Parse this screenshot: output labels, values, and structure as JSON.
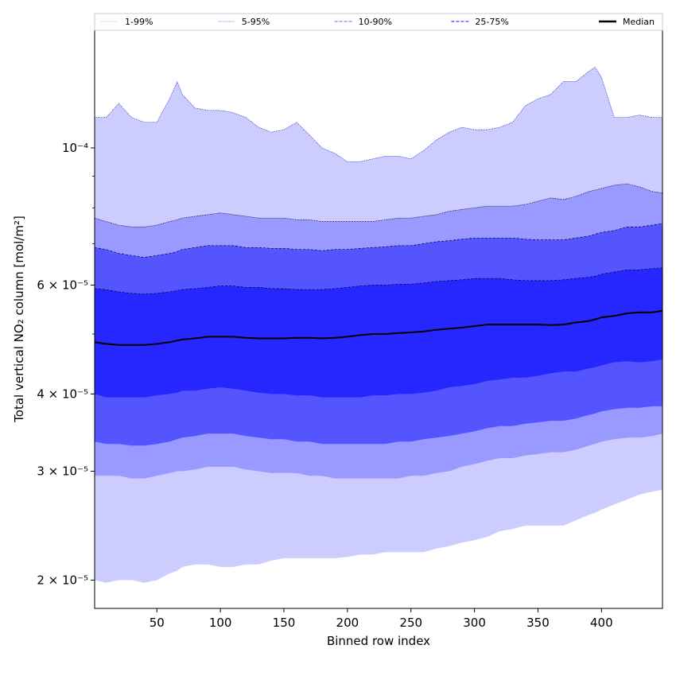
{
  "chart_data": {
    "type": "area",
    "xlabel": "Binned row index",
    "ylabel": "Total vertical NO₂ column [mol/m²]",
    "xlim": [
      1,
      448
    ],
    "ylim": [
      1.8e-05,
      0.000155
    ],
    "yscale": "log",
    "x_ticks": [
      50,
      100,
      150,
      200,
      250,
      300,
      350,
      400
    ],
    "y_ticks": [
      {
        "value": 2e-05,
        "label": "2 × 10⁻⁵"
      },
      {
        "value": 3e-05,
        "label": "3 × 10⁻⁵"
      },
      {
        "value": 4e-05,
        "label": "4 × 10⁻⁵"
      },
      {
        "value": 6e-05,
        "label": "6 × 10⁻⁵"
      },
      {
        "value": 0.0001,
        "label": "10⁻⁴"
      }
    ],
    "legend_position": "top",
    "legend": [
      {
        "label": "1-99%",
        "color": "#ccccff",
        "style": "dotted"
      },
      {
        "label": "5-95%",
        "color": "#9999ff",
        "style": "dotted"
      },
      {
        "label": "10-90%",
        "color": "#8080ff",
        "style": "dashed"
      },
      {
        "label": "25-75%",
        "color": "#4040ff",
        "style": "dashed"
      },
      {
        "label": "Median",
        "color": "#000000",
        "style": "solid"
      }
    ],
    "x": [
      1,
      10,
      20,
      30,
      40,
      50,
      60,
      66,
      70,
      80,
      90,
      100,
      110,
      120,
      130,
      140,
      150,
      160,
      170,
      180,
      190,
      200,
      210,
      220,
      230,
      240,
      250,
      260,
      270,
      280,
      290,
      300,
      310,
      320,
      330,
      340,
      350,
      360,
      370,
      380,
      390,
      395,
      400,
      410,
      420,
      430,
      440,
      448
    ],
    "series": [
      {
        "name": "1-99%",
        "color": "#ccccff",
        "lower": [
          2e-05,
          1.98e-05,
          2e-05,
          2e-05,
          1.98e-05,
          2e-05,
          2.05e-05,
          2.07e-05,
          2.1e-05,
          2.12e-05,
          2.12e-05,
          2.1e-05,
          2.1e-05,
          2.12e-05,
          2.12e-05,
          2.15e-05,
          2.17e-05,
          2.17e-05,
          2.17e-05,
          2.17e-05,
          2.17e-05,
          2.18e-05,
          2.2e-05,
          2.2e-05,
          2.22e-05,
          2.22e-05,
          2.22e-05,
          2.22e-05,
          2.25e-05,
          2.27e-05,
          2.3e-05,
          2.32e-05,
          2.35e-05,
          2.4e-05,
          2.42e-05,
          2.45e-05,
          2.45e-05,
          2.45e-05,
          2.45e-05,
          2.5e-05,
          2.55e-05,
          2.57e-05,
          2.6e-05,
          2.65e-05,
          2.7e-05,
          2.75e-05,
          2.78e-05,
          2.8e-05
        ],
        "upper": [
          0.000112,
          0.000112,
          0.000118,
          0.000112,
          0.00011,
          0.00011,
          0.00012,
          0.000128,
          0.000122,
          0.000116,
          0.000115,
          0.000115,
          0.000114,
          0.000112,
          0.000108,
          0.000106,
          0.000107,
          0.00011,
          0.000105,
          0.0001,
          9.8e-05,
          9.5e-05,
          9.5e-05,
          9.6e-05,
          9.7e-05,
          9.7e-05,
          9.6e-05,
          9.9e-05,
          0.000103,
          0.000106,
          0.000108,
          0.000107,
          0.000107,
          0.000108,
          0.00011,
          0.000117,
          0.00012,
          0.000122,
          0.000128,
          0.000128,
          0.000133,
          0.000135,
          0.00013,
          0.000112,
          0.000112,
          0.000113,
          0.000112,
          0.000112
        ]
      },
      {
        "name": "5-95%",
        "color": "#9999ff",
        "lower": [
          2.95e-05,
          2.95e-05,
          2.95e-05,
          2.92e-05,
          2.92e-05,
          2.95e-05,
          2.98e-05,
          3e-05,
          3e-05,
          3.02e-05,
          3.05e-05,
          3.05e-05,
          3.05e-05,
          3.02e-05,
          3e-05,
          2.98e-05,
          2.98e-05,
          2.98e-05,
          2.95e-05,
          2.95e-05,
          2.92e-05,
          2.92e-05,
          2.92e-05,
          2.92e-05,
          2.92e-05,
          2.92e-05,
          2.95e-05,
          2.95e-05,
          2.98e-05,
          3e-05,
          3.05e-05,
          3.08e-05,
          3.12e-05,
          3.15e-05,
          3.15e-05,
          3.18e-05,
          3.2e-05,
          3.22e-05,
          3.22e-05,
          3.25e-05,
          3.3e-05,
          3.32e-05,
          3.35e-05,
          3.38e-05,
          3.4e-05,
          3.4e-05,
          3.42e-05,
          3.45e-05
        ],
        "upper": [
          7.7e-05,
          7.6e-05,
          7.5e-05,
          7.45e-05,
          7.45e-05,
          7.5e-05,
          7.6e-05,
          7.65e-05,
          7.7e-05,
          7.75e-05,
          7.8e-05,
          7.85e-05,
          7.8e-05,
          7.75e-05,
          7.7e-05,
          7.7e-05,
          7.7e-05,
          7.65e-05,
          7.65e-05,
          7.6e-05,
          7.6e-05,
          7.6e-05,
          7.6e-05,
          7.6e-05,
          7.65e-05,
          7.7e-05,
          7.7e-05,
          7.75e-05,
          7.8e-05,
          7.9e-05,
          7.95e-05,
          8e-05,
          8.05e-05,
          8.05e-05,
          8.05e-05,
          8.1e-05,
          8.2e-05,
          8.3e-05,
          8.25e-05,
          8.35e-05,
          8.5e-05,
          8.55e-05,
          8.6e-05,
          8.7e-05,
          8.75e-05,
          8.65e-05,
          8.5e-05,
          8.45e-05
        ]
      },
      {
        "name": "10-90%",
        "color": "#5555ff",
        "lower": [
          3.35e-05,
          3.32e-05,
          3.32e-05,
          3.3e-05,
          3.3e-05,
          3.32e-05,
          3.35e-05,
          3.38e-05,
          3.4e-05,
          3.42e-05,
          3.45e-05,
          3.45e-05,
          3.45e-05,
          3.42e-05,
          3.4e-05,
          3.38e-05,
          3.38e-05,
          3.35e-05,
          3.35e-05,
          3.32e-05,
          3.32e-05,
          3.32e-05,
          3.32e-05,
          3.32e-05,
          3.32e-05,
          3.35e-05,
          3.35e-05,
          3.38e-05,
          3.4e-05,
          3.42e-05,
          3.45e-05,
          3.48e-05,
          3.52e-05,
          3.55e-05,
          3.55e-05,
          3.58e-05,
          3.6e-05,
          3.62e-05,
          3.62e-05,
          3.65e-05,
          3.7e-05,
          3.72e-05,
          3.75e-05,
          3.78e-05,
          3.8e-05,
          3.8e-05,
          3.82e-05,
          3.82e-05
        ],
        "upper": [
          6.9e-05,
          6.85e-05,
          6.75e-05,
          6.7e-05,
          6.65e-05,
          6.7e-05,
          6.75e-05,
          6.8e-05,
          6.85e-05,
          6.9e-05,
          6.95e-05,
          6.95e-05,
          6.95e-05,
          6.9e-05,
          6.9e-05,
          6.88e-05,
          6.88e-05,
          6.85e-05,
          6.85e-05,
          6.82e-05,
          6.85e-05,
          6.85e-05,
          6.88e-05,
          6.9e-05,
          6.92e-05,
          6.95e-05,
          6.95e-05,
          7e-05,
          7.05e-05,
          7.08e-05,
          7.12e-05,
          7.15e-05,
          7.15e-05,
          7.15e-05,
          7.15e-05,
          7.12e-05,
          7.1e-05,
          7.1e-05,
          7.1e-05,
          7.15e-05,
          7.2e-05,
          7.25e-05,
          7.3e-05,
          7.35e-05,
          7.45e-05,
          7.45e-05,
          7.5e-05,
          7.55e-05
        ]
      },
      {
        "name": "25-75%",
        "color": "#2626ff",
        "lower": [
          4e-05,
          3.95e-05,
          3.95e-05,
          3.95e-05,
          3.95e-05,
          3.98e-05,
          4e-05,
          4.02e-05,
          4.05e-05,
          4.05e-05,
          4.08e-05,
          4.1e-05,
          4.08e-05,
          4.05e-05,
          4.02e-05,
          4e-05,
          4e-05,
          3.98e-05,
          3.98e-05,
          3.95e-05,
          3.95e-05,
          3.95e-05,
          3.95e-05,
          3.98e-05,
          3.98e-05,
          4e-05,
          4e-05,
          4.02e-05,
          4.05e-05,
          4.1e-05,
          4.12e-05,
          4.15e-05,
          4.2e-05,
          4.22e-05,
          4.25e-05,
          4.25e-05,
          4.28e-05,
          4.32e-05,
          4.35e-05,
          4.35e-05,
          4.4e-05,
          4.42e-05,
          4.45e-05,
          4.5e-05,
          4.52e-05,
          4.5e-05,
          4.52e-05,
          4.55e-05
        ],
        "upper": [
          5.92e-05,
          5.9e-05,
          5.85e-05,
          5.82e-05,
          5.8e-05,
          5.82e-05,
          5.85e-05,
          5.88e-05,
          5.9e-05,
          5.92e-05,
          5.95e-05,
          5.98e-05,
          5.98e-05,
          5.95e-05,
          5.95e-05,
          5.92e-05,
          5.92e-05,
          5.9e-05,
          5.9e-05,
          5.9e-05,
          5.92e-05,
          5.95e-05,
          5.98e-05,
          6e-05,
          6e-05,
          6.02e-05,
          6.02e-05,
          6.05e-05,
          6.08e-05,
          6.1e-05,
          6.12e-05,
          6.15e-05,
          6.15e-05,
          6.15e-05,
          6.12e-05,
          6.1e-05,
          6.1e-05,
          6.1e-05,
          6.12e-05,
          6.15e-05,
          6.18e-05,
          6.2e-05,
          6.25e-05,
          6.3e-05,
          6.35e-05,
          6.35e-05,
          6.38e-05,
          6.4e-05
        ]
      },
      {
        "name": "Median",
        "color": "#000000",
        "values": [
          4.85e-05,
          4.82e-05,
          4.8e-05,
          4.8e-05,
          4.8e-05,
          4.82e-05,
          4.85e-05,
          4.88e-05,
          4.9e-05,
          4.92e-05,
          4.95e-05,
          4.95e-05,
          4.95e-05,
          4.93e-05,
          4.92e-05,
          4.92e-05,
          4.92e-05,
          4.93e-05,
          4.93e-05,
          4.92e-05,
          4.93e-05,
          4.95e-05,
          4.98e-05,
          5e-05,
          5e-05,
          5.02e-05,
          5.03e-05,
          5.05e-05,
          5.08e-05,
          5.1e-05,
          5.12e-05,
          5.15e-05,
          5.18e-05,
          5.18e-05,
          5.18e-05,
          5.18e-05,
          5.18e-05,
          5.17e-05,
          5.18e-05,
          5.22e-05,
          5.25e-05,
          5.28e-05,
          5.32e-05,
          5.35e-05,
          5.4e-05,
          5.42e-05,
          5.42e-05,
          5.45e-05
        ]
      }
    ]
  }
}
